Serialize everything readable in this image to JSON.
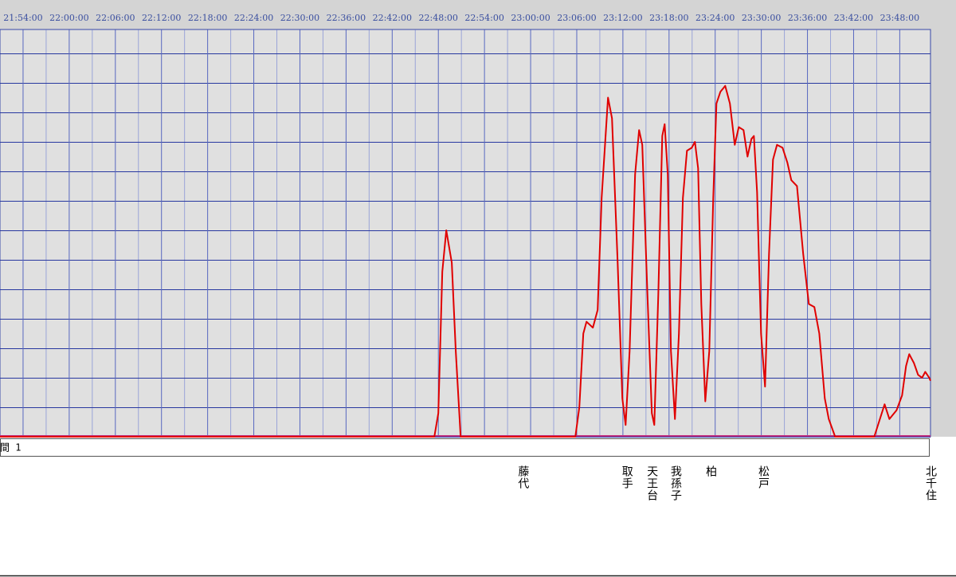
{
  "chart_data": {
    "type": "line",
    "color": "#e00000",
    "xlim": [
      "21:51:00",
      "23:52:00"
    ],
    "xticks": [
      "21:54:00",
      "22:00:00",
      "22:06:00",
      "22:12:00",
      "22:18:00",
      "22:24:00",
      "22:30:00",
      "22:36:00",
      "22:42:00",
      "22:48:00",
      "22:54:00",
      "23:00:00",
      "23:06:00",
      "23:12:00",
      "23:18:00",
      "23:24:00",
      "23:30:00",
      "23:36:00",
      "23:42:00",
      "23:48:00"
    ],
    "ylim": [
      0,
      13.8
    ],
    "yticks": [
      0,
      1,
      2,
      3,
      4,
      5,
      6,
      7,
      8,
      9,
      10,
      11,
      12,
      13
    ],
    "grid": true,
    "x": [
      "21:51:00",
      "22:47:29",
      "22:48:00",
      "22:48:31",
      "22:49:02",
      "22:49:45",
      "22:50:16",
      "22:50:54",
      "23:05:49",
      "23:06:20",
      "23:06:51",
      "23:07:16",
      "23:08:06",
      "23:08:43",
      "23:09:14",
      "23:10:04",
      "23:10:35",
      "23:11:19",
      "23:11:56",
      "23:12:21",
      "23:12:52",
      "23:13:35",
      "23:14:06",
      "23:14:31",
      "23:15:09",
      "23:15:46",
      "23:16:05",
      "23:16:36",
      "23:17:07",
      "23:17:26",
      "23:17:50",
      "23:18:15",
      "23:18:46",
      "23:19:17",
      "23:19:48",
      "23:20:20",
      "23:20:57",
      "23:21:22",
      "23:21:47",
      "23:22:12",
      "23:22:43",
      "23:23:14",
      "23:23:45",
      "23:24:10",
      "23:24:41",
      "23:25:18",
      "23:25:55",
      "23:26:33",
      "23:27:04",
      "23:27:41",
      "23:28:12",
      "23:28:43",
      "23:29:02",
      "23:29:27",
      "23:29:58",
      "23:30:29",
      "23:31:00",
      "23:31:31",
      "23:32:02",
      "23:32:46",
      "23:33:23",
      "23:33:54",
      "23:34:38",
      "23:35:27",
      "23:36:11",
      "23:36:54",
      "23:37:32",
      "23:38:15",
      "23:38:46",
      "23:39:36",
      "23:44:41",
      "23:45:18",
      "23:46:02",
      "23:46:39",
      "23:47:35",
      "23:48:18",
      "23:48:49",
      "23:49:14",
      "23:49:51",
      "23:50:23",
      "23:50:54",
      "23:51:19",
      "23:51:50",
      "23:52:00"
    ],
    "values": [
      0,
      0,
      0.8,
      5.6,
      7.0,
      5.9,
      2.9,
      0,
      0,
      1.0,
      3.5,
      3.9,
      3.7,
      4.3,
      8.1,
      11.5,
      10.8,
      5.9,
      1.3,
      0.4,
      2.9,
      8.9,
      10.4,
      9.9,
      5.1,
      0.8,
      0.4,
      4.8,
      10.2,
      10.6,
      8.9,
      2.9,
      0.6,
      3.5,
      8.1,
      9.7,
      9.8,
      10.0,
      9.1,
      4.5,
      1.2,
      2.9,
      8.1,
      11.3,
      11.7,
      11.9,
      11.3,
      9.9,
      10.5,
      10.4,
      9.5,
      10.1,
      10.2,
      8.3,
      3.5,
      1.7,
      6.2,
      9.4,
      9.9,
      9.8,
      9.3,
      8.7,
      8.5,
      6.2,
      4.5,
      4.4,
      3.5,
      1.3,
      0.6,
      0,
      0,
      0.5,
      1.1,
      0.6,
      0.9,
      1.4,
      2.4,
      2.8,
      2.5,
      2.1,
      2.0,
      2.2,
      2.0,
      1.9
    ],
    "legend_text": "間 1",
    "annotations": [
      {
        "text": "藤代",
        "x": "22:59:00"
      },
      {
        "text": "取手",
        "x": "23:12:30"
      },
      {
        "text": "天王台",
        "x": "23:15:45"
      },
      {
        "text": "我孫子",
        "x": "23:18:50"
      },
      {
        "text": "柏",
        "x": "23:23:25"
      },
      {
        "text": "松戸",
        "x": "23:30:15"
      },
      {
        "text": "北千住",
        "x": "23:52:00"
      }
    ]
  }
}
